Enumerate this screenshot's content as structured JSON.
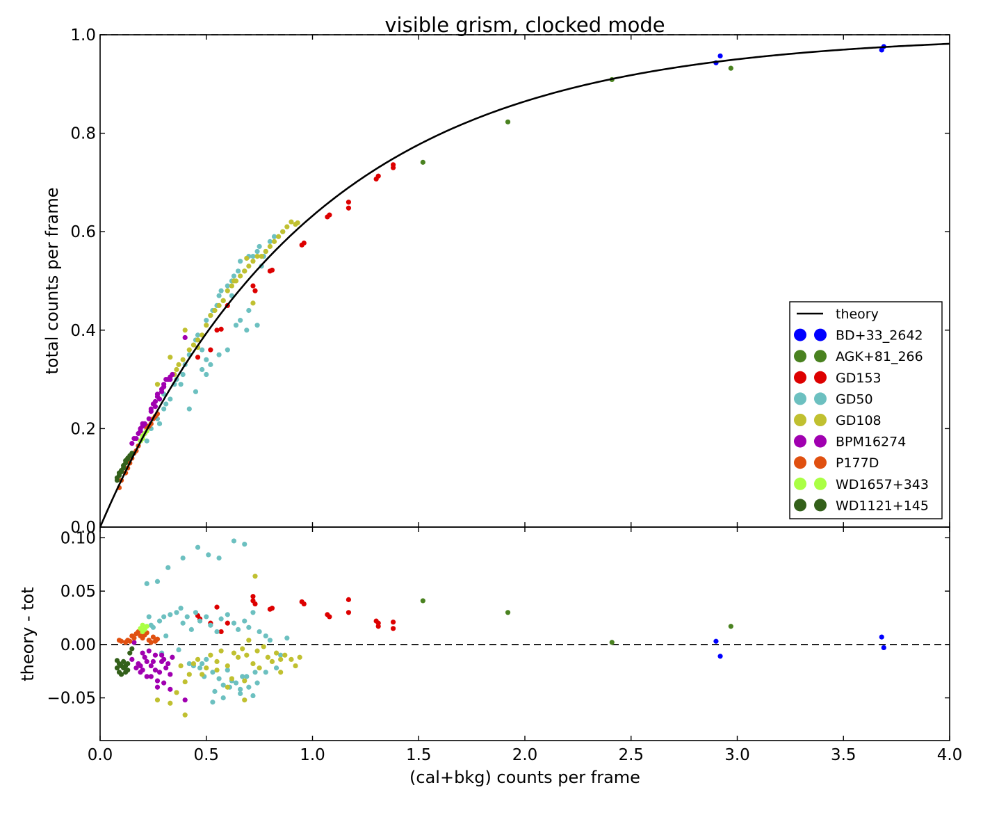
{
  "chart_data": [
    {
      "type": "scatter",
      "title": "visible grism, clocked mode",
      "xlabel": "",
      "ylabel": "total counts per frame",
      "xlim": [
        0.0,
        4.0
      ],
      "ylim": [
        0.0,
        1.0
      ],
      "x_ticks": [],
      "y_ticks": [
        "0.0",
        "0.2",
        "0.4",
        "0.6",
        "0.8",
        "1.0"
      ],
      "y_tick_values": [
        0.0,
        0.2,
        0.4,
        0.6,
        0.8,
        1.0
      ],
      "reference_line": {
        "style": "dashed",
        "y": 1.0
      },
      "theory_curve": {
        "name": "theory",
        "formula": "y = 1 - exp(-x)",
        "color": "#000000"
      },
      "legend": {
        "placement": "lower-right"
      },
      "series": [
        {
          "name": "BD+33_2642",
          "color": "#0000ff",
          "x": [
            2.9,
            2.92,
            3.68,
            3.69
          ],
          "y": [
            0.943,
            0.957,
            0.969,
            0.976
          ]
        },
        {
          "name": "AGK+81_266",
          "color": "#4a8220",
          "x": [
            1.52,
            1.92,
            2.41,
            2.97
          ],
          "y": [
            0.741,
            0.823,
            0.909,
            0.932
          ]
        },
        {
          "name": "GD153",
          "color": "#dd0000",
          "x": [
            0.46,
            0.52,
            0.55,
            0.57,
            0.6,
            0.72,
            0.73,
            0.8,
            0.81,
            0.95,
            0.96,
            1.07,
            1.08,
            1.17,
            1.17,
            1.3,
            1.31,
            1.38,
            1.38
          ],
          "y": [
            0.345,
            0.36,
            0.4,
            0.402,
            0.45,
            0.49,
            0.48,
            0.52,
            0.522,
            0.573,
            0.577,
            0.63,
            0.634,
            0.66,
            0.648,
            0.707,
            0.713,
            0.73,
            0.736
          ]
        },
        {
          "name": "GD50",
          "color": "#6cc0c0",
          "x": [
            0.22,
            0.24,
            0.27,
            0.3,
            0.31,
            0.33,
            0.35,
            0.38,
            0.39,
            0.4,
            0.42,
            0.45,
            0.46,
            0.48,
            0.5,
            0.5,
            0.52,
            0.53,
            0.55,
            0.56,
            0.57,
            0.58,
            0.6,
            0.62,
            0.63,
            0.65,
            0.66,
            0.68,
            0.7,
            0.72,
            0.74,
            0.75,
            0.77,
            0.78,
            0.8,
            0.82,
            0.86,
            0.3,
            0.36,
            0.45,
            0.5,
            0.56,
            0.64,
            0.69,
            0.74,
            0.28,
            0.42,
            0.48,
            0.6,
            0.66,
            0.7,
            0.76,
            0.52,
            0.62
          ],
          "y": [
            0.175,
            0.2,
            0.22,
            0.24,
            0.25,
            0.26,
            0.29,
            0.29,
            0.31,
            0.33,
            0.35,
            0.38,
            0.39,
            0.36,
            0.42,
            0.34,
            0.43,
            0.44,
            0.45,
            0.47,
            0.48,
            0.46,
            0.49,
            0.5,
            0.51,
            0.52,
            0.54,
            0.52,
            0.55,
            0.55,
            0.56,
            0.57,
            0.55,
            0.56,
            0.58,
            0.59,
            0.6,
            0.27,
            0.3,
            0.275,
            0.31,
            0.35,
            0.41,
            0.4,
            0.41,
            0.21,
            0.24,
            0.32,
            0.36,
            0.42,
            0.44,
            0.53,
            0.33,
            0.47
          ]
        },
        {
          "name": "GD108",
          "color": "#c0c030",
          "x": [
            0.27,
            0.33,
            0.36,
            0.37,
            0.4,
            0.42,
            0.44,
            0.46,
            0.48,
            0.5,
            0.52,
            0.54,
            0.56,
            0.58,
            0.6,
            0.62,
            0.64,
            0.66,
            0.68,
            0.7,
            0.72,
            0.74,
            0.76,
            0.78,
            0.8,
            0.82,
            0.84,
            0.86,
            0.88,
            0.9,
            0.92,
            0.93,
            0.69,
            0.72,
            0.46,
            0.39,
            0.63,
            0.35
          ],
          "y": [
            0.29,
            0.345,
            0.32,
            0.33,
            0.4,
            0.36,
            0.37,
            0.38,
            0.39,
            0.41,
            0.43,
            0.44,
            0.45,
            0.46,
            0.48,
            0.49,
            0.5,
            0.51,
            0.52,
            0.53,
            0.54,
            0.55,
            0.55,
            0.56,
            0.57,
            0.58,
            0.59,
            0.6,
            0.61,
            0.62,
            0.615,
            0.618,
            0.546,
            0.455,
            0.365,
            0.34,
            0.5,
            0.31
          ]
        },
        {
          "name": "BPM16274",
          "color": "#a000b0",
          "x": [
            0.15,
            0.17,
            0.18,
            0.19,
            0.2,
            0.21,
            0.22,
            0.23,
            0.24,
            0.25,
            0.26,
            0.27,
            0.28,
            0.29,
            0.3,
            0.31,
            0.32,
            0.33,
            0.34,
            0.2,
            0.24,
            0.27,
            0.3,
            0.33,
            0.22,
            0.26,
            0.29,
            0.4,
            0.16,
            0.19
          ],
          "y": [
            0.17,
            0.18,
            0.19,
            0.195,
            0.205,
            0.21,
            0.2,
            0.22,
            0.24,
            0.25,
            0.255,
            0.27,
            0.26,
            0.28,
            0.29,
            0.3,
            0.3,
            0.305,
            0.31,
            0.21,
            0.235,
            0.265,
            0.285,
            0.3,
            0.205,
            0.245,
            0.275,
            0.385,
            0.18,
            0.2
          ]
        },
        {
          "name": "P177D",
          "color": "#e05010",
          "x": [
            0.09,
            0.1,
            0.12,
            0.13,
            0.14,
            0.15,
            0.16,
            0.17,
            0.18,
            0.19,
            0.2,
            0.21,
            0.22,
            0.23,
            0.24,
            0.25,
            0.26,
            0.27
          ],
          "y": [
            0.08,
            0.095,
            0.11,
            0.12,
            0.13,
            0.14,
            0.15,
            0.155,
            0.165,
            0.175,
            0.185,
            0.19,
            0.2,
            0.205,
            0.21,
            0.22,
            0.225,
            0.23
          ]
        },
        {
          "name": "WD1657+343",
          "color": "#aaff44",
          "x": [
            0.19,
            0.2,
            0.21,
            0.2,
            0.22
          ],
          "y": [
            0.175,
            0.18,
            0.19,
            0.185,
            0.195
          ]
        },
        {
          "name": "WD1121+145",
          "color": "#33601a",
          "x": [
            0.08,
            0.08,
            0.09,
            0.09,
            0.1,
            0.1,
            0.11,
            0.11,
            0.12,
            0.12,
            0.13,
            0.13,
            0.14,
            0.15
          ],
          "y": [
            0.095,
            0.1,
            0.105,
            0.11,
            0.112,
            0.115,
            0.12,
            0.125,
            0.13,
            0.135,
            0.138,
            0.14,
            0.145,
            0.15
          ]
        }
      ]
    },
    {
      "type": "scatter",
      "title": "",
      "xlabel": "(cal+bkg) counts per frame",
      "ylabel": "theory - tot",
      "xlim": [
        0.0,
        4.0
      ],
      "ylim": [
        -0.09,
        0.11
      ],
      "x_ticks": [
        "0.0",
        "0.5",
        "1.0",
        "1.5",
        "2.0",
        "2.5",
        "3.0",
        "3.5",
        "4.0"
      ],
      "x_tick_values": [
        0.0,
        0.5,
        1.0,
        1.5,
        2.0,
        2.5,
        3.0,
        3.5,
        4.0
      ],
      "y_ticks": [
        "0.10",
        "0.05",
        "0.00",
        "−0.05"
      ],
      "y_tick_values": [
        0.1,
        0.05,
        0.0,
        -0.05
      ],
      "reference_line": {
        "style": "dashed",
        "y": 0.0
      },
      "series": [
        {
          "name": "BD+33_2642",
          "color": "#0000ff",
          "x": [
            2.9,
            2.92,
            3.68,
            3.69
          ],
          "y": [
            0.003,
            -0.011,
            0.007,
            -0.003
          ]
        },
        {
          "name": "AGK+81_266",
          "color": "#4a8220",
          "x": [
            1.52,
            1.92,
            2.41,
            2.97
          ],
          "y": [
            0.041,
            0.03,
            0.002,
            0.017
          ]
        },
        {
          "name": "GD153",
          "color": "#dd0000",
          "x": [
            0.46,
            0.47,
            0.52,
            0.55,
            0.57,
            0.6,
            0.72,
            0.72,
            0.73,
            0.8,
            0.81,
            0.95,
            0.96,
            1.07,
            1.08,
            1.17,
            1.17,
            1.3,
            1.31,
            1.31,
            1.38,
            1.38
          ],
          "y": [
            0.027,
            0.024,
            0.02,
            0.035,
            0.012,
            0.02,
            0.045,
            0.041,
            0.038,
            0.033,
            0.034,
            0.04,
            0.038,
            0.028,
            0.026,
            0.042,
            0.03,
            0.022,
            0.02,
            0.017,
            0.021,
            0.015
          ]
        },
        {
          "name": "GD50",
          "color": "#6cc0c0",
          "x": [
            0.22,
            0.23,
            0.27,
            0.32,
            0.39,
            0.46,
            0.51,
            0.56,
            0.63,
            0.68,
            0.24,
            0.28,
            0.3,
            0.33,
            0.36,
            0.38,
            0.41,
            0.43,
            0.45,
            0.47,
            0.5,
            0.52,
            0.55,
            0.57,
            0.6,
            0.63,
            0.65,
            0.68,
            0.7,
            0.72,
            0.75,
            0.78,
            0.8,
            0.85,
            0.88,
            0.29,
            0.34,
            0.37,
            0.42,
            0.47,
            0.5,
            0.53,
            0.56,
            0.58,
            0.61,
            0.64,
            0.66,
            0.69,
            0.72,
            0.54,
            0.58,
            0.62,
            0.66,
            0.7,
            0.74,
            0.78,
            0.83,
            0.25,
            0.31,
            0.39,
            0.44,
            0.49,
            0.6,
            0.67,
            0.73,
            0.48,
            0.53
          ],
          "y": [
            0.057,
            0.026,
            0.059,
            0.072,
            0.081,
            0.091,
            0.084,
            0.081,
            0.097,
            0.094,
            0.018,
            0.022,
            0.026,
            0.028,
            0.03,
            0.034,
            0.026,
            0.014,
            0.03,
            0.022,
            0.026,
            0.018,
            0.012,
            0.024,
            0.028,
            0.02,
            0.014,
            0.022,
            0.016,
            0.03,
            0.012,
            0.008,
            0.004,
            -0.01,
            0.006,
            -0.008,
            -0.012,
            -0.005,
            -0.018,
            -0.022,
            -0.014,
            -0.026,
            -0.032,
            -0.038,
            -0.04,
            -0.036,
            -0.042,
            -0.03,
            -0.048,
            -0.044,
            -0.05,
            -0.034,
            -0.046,
            -0.04,
            -0.036,
            -0.026,
            -0.022,
            0.016,
            0.008,
            0.02,
            -0.02,
            -0.03,
            -0.024,
            -0.03,
            -0.026,
            -0.018,
            -0.054
          ]
        },
        {
          "name": "GD108",
          "color": "#c0c030",
          "x": [
            0.27,
            0.33,
            0.36,
            0.4,
            0.42,
            0.44,
            0.46,
            0.5,
            0.52,
            0.55,
            0.57,
            0.6,
            0.63,
            0.65,
            0.67,
            0.69,
            0.72,
            0.74,
            0.77,
            0.79,
            0.81,
            0.83,
            0.85,
            0.87,
            0.9,
            0.92,
            0.94,
            0.38,
            0.48,
            0.55,
            0.62,
            0.68,
            0.75,
            0.85,
            0.73,
            0.4,
            0.68,
            0.6,
            0.7
          ],
          "y": [
            -0.052,
            -0.055,
            -0.045,
            -0.066,
            -0.028,
            -0.018,
            -0.014,
            -0.022,
            -0.01,
            -0.016,
            -0.006,
            -0.02,
            -0.008,
            -0.012,
            -0.004,
            -0.01,
            -0.018,
            -0.006,
            -0.002,
            -0.012,
            -0.016,
            -0.008,
            -0.014,
            -0.01,
            -0.014,
            -0.02,
            -0.012,
            -0.02,
            -0.028,
            -0.024,
            -0.032,
            -0.034,
            -0.022,
            -0.026,
            0.064,
            -0.035,
            -0.052,
            -0.04,
            0.004
          ]
        },
        {
          "name": "BPM16274",
          "color": "#a000b0",
          "x": [
            0.15,
            0.17,
            0.18,
            0.19,
            0.2,
            0.21,
            0.22,
            0.23,
            0.24,
            0.25,
            0.26,
            0.27,
            0.28,
            0.29,
            0.3,
            0.31,
            0.32,
            0.33,
            0.34,
            0.2,
            0.24,
            0.27,
            0.3,
            0.33,
            0.22,
            0.26,
            0.29,
            0.4,
            0.16,
            0.19
          ],
          "y": [
            -0.014,
            -0.022,
            -0.018,
            -0.026,
            -0.008,
            -0.012,
            -0.03,
            -0.006,
            -0.02,
            -0.016,
            -0.01,
            -0.034,
            -0.026,
            -0.01,
            -0.014,
            -0.022,
            -0.018,
            -0.028,
            -0.012,
            -0.024,
            -0.03,
            -0.04,
            -0.036,
            -0.042,
            -0.016,
            -0.024,
            -0.016,
            -0.052,
            0.002,
            -0.02
          ]
        },
        {
          "name": "P177D",
          "color": "#e05010",
          "x": [
            0.09,
            0.1,
            0.12,
            0.13,
            0.14,
            0.15,
            0.16,
            0.17,
            0.18,
            0.19,
            0.2,
            0.21,
            0.22,
            0.23,
            0.24,
            0.25,
            0.26,
            0.27
          ],
          "y": [
            0.004,
            0.003,
            0.002,
            0.004,
            0.003,
            0.008,
            0.006,
            0.01,
            0.012,
            0.008,
            0.006,
            0.009,
            0.011,
            0.004,
            0.002,
            0.007,
            0.003,
            0.005
          ]
        },
        {
          "name": "WD1657+343",
          "color": "#aaff44",
          "x": [
            0.19,
            0.2,
            0.21,
            0.2,
            0.22
          ],
          "y": [
            0.015,
            0.018,
            0.014,
            0.012,
            0.017
          ]
        },
        {
          "name": "WD1121+145",
          "color": "#33601a",
          "x": [
            0.08,
            0.08,
            0.09,
            0.09,
            0.1,
            0.1,
            0.11,
            0.11,
            0.12,
            0.12,
            0.13,
            0.13,
            0.14,
            0.15
          ],
          "y": [
            -0.015,
            -0.022,
            -0.018,
            -0.026,
            -0.02,
            -0.028,
            -0.022,
            -0.016,
            -0.026,
            -0.02,
            -0.024,
            -0.018,
            -0.008,
            -0.004
          ]
        }
      ]
    }
  ]
}
